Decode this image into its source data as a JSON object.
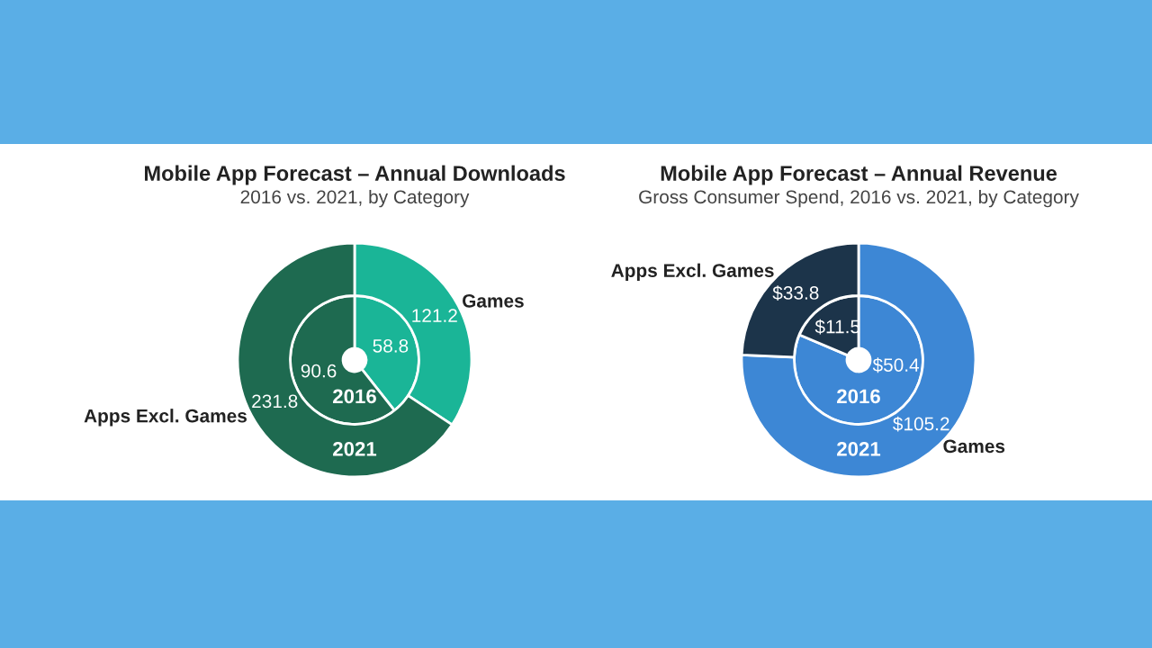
{
  "chart_data": [
    {
      "type": "donut",
      "title": "Mobile App Forecast – Annual Downloads",
      "subtitle": "2016 vs. 2021, by Category",
      "categories": [
        "Games",
        "Apps Excl. Games"
      ],
      "colors": [
        "#1ab597",
        "#1e6a50"
      ],
      "series": [
        {
          "name": "2016",
          "values": [
            58.8,
            90.6
          ],
          "value_labels": [
            "58.8",
            "90.6"
          ]
        },
        {
          "name": "2021",
          "values": [
            121.2,
            231.8
          ],
          "value_labels": [
            "121.2",
            "231.8"
          ]
        }
      ]
    },
    {
      "type": "donut",
      "title": "Mobile App Forecast – Annual Revenue",
      "subtitle": "Gross Consumer Spend, 2016 vs. 2021, by Category",
      "categories": [
        "Games",
        "Apps Excl. Games"
      ],
      "colors": [
        "#3d87d5",
        "#1c344a"
      ],
      "series": [
        {
          "name": "2016",
          "values": [
            50.4,
            11.5
          ],
          "value_labels": [
            "$50.4",
            "$11.5"
          ]
        },
        {
          "name": "2021",
          "values": [
            105.2,
            33.8
          ],
          "value_labels": [
            "$105.2",
            "$33.8"
          ]
        }
      ]
    }
  ]
}
